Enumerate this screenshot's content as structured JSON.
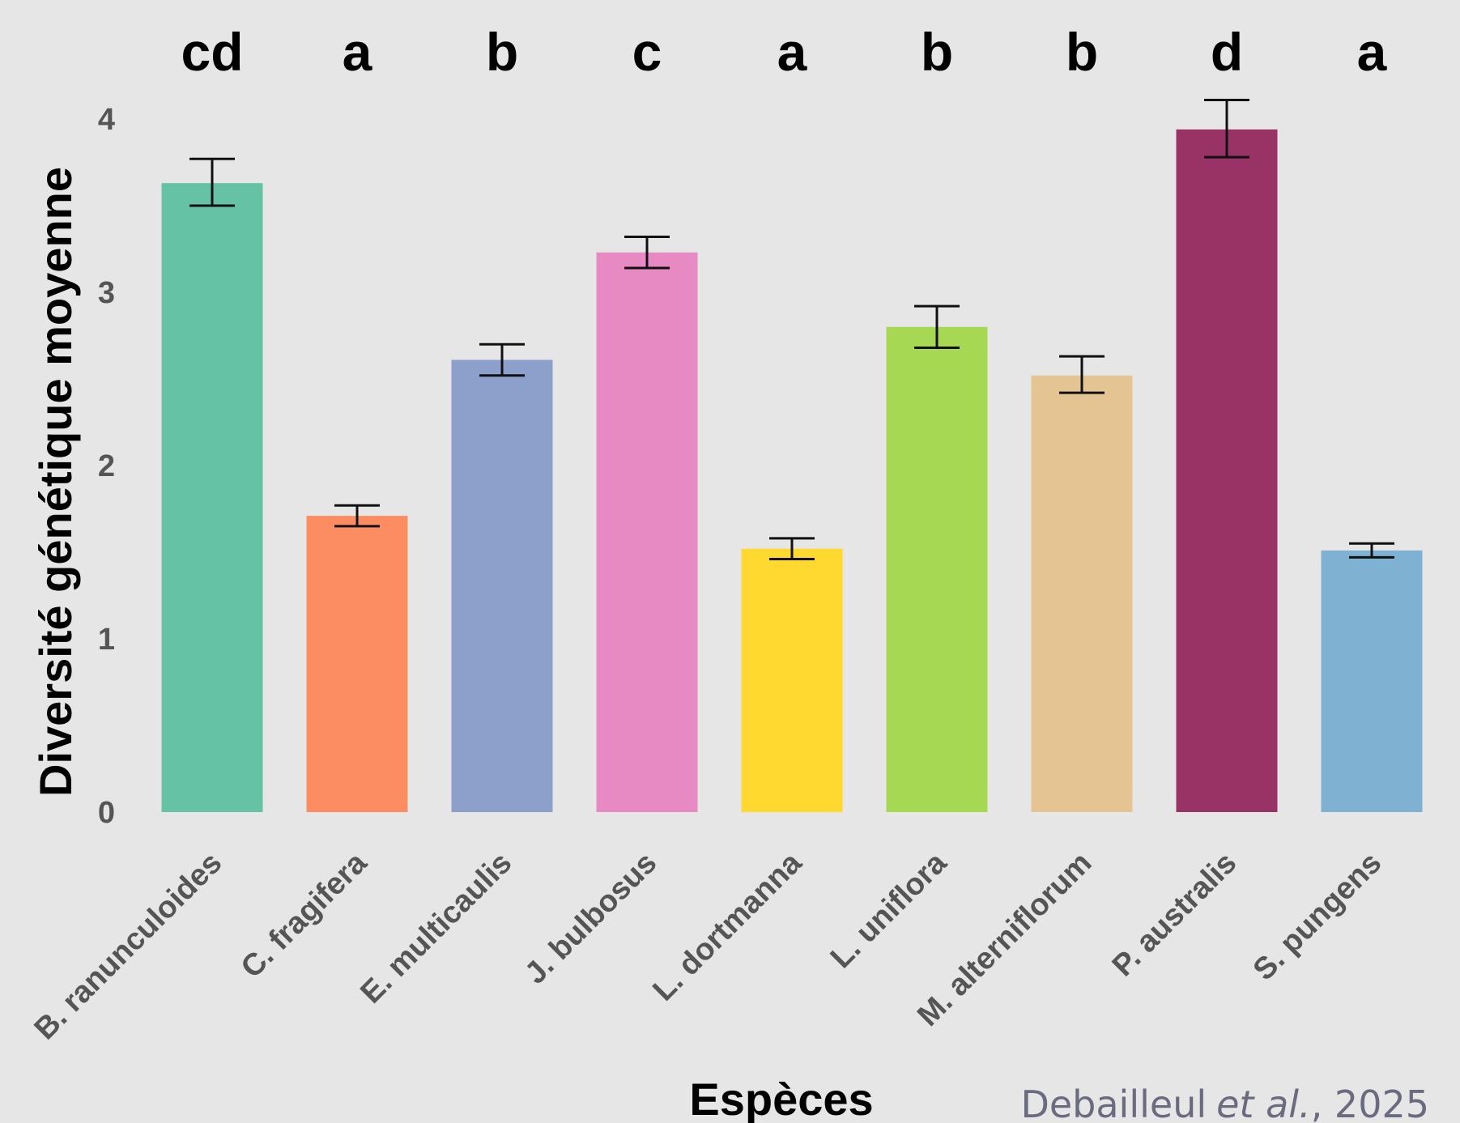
{
  "chart_data": {
    "type": "bar",
    "categories": [
      "B. ranunculoides",
      "C. fragifera",
      "E. multicaulis",
      "J. bulbosus",
      "L. dortmanna",
      "L. uniflora",
      "M. alterniflorum",
      "P. australis",
      "S. pungens"
    ],
    "values": [
      3.63,
      1.71,
      2.61,
      3.23,
      1.52,
      2.8,
      2.52,
      3.94,
      1.51
    ],
    "error_low": [
      3.5,
      1.65,
      2.52,
      3.14,
      1.46,
      2.68,
      2.42,
      3.78,
      1.47
    ],
    "error_high": [
      3.77,
      1.77,
      2.7,
      3.32,
      1.58,
      2.92,
      2.63,
      4.11,
      1.55
    ],
    "significance": [
      "cd",
      "a",
      "b",
      "c",
      "a",
      "b",
      "b",
      "d",
      "a"
    ],
    "colors": [
      "#66c2a5",
      "#fc8d62",
      "#8da0cb",
      "#e78ac3",
      "#ffd92f",
      "#a6d854",
      "#e5c494",
      "#993366",
      "#7fb1d3"
    ],
    "xlabel": "Espèces",
    "ylabel": "Diversité génétique moyenne",
    "yticks": [
      0,
      1,
      2,
      3,
      4
    ],
    "ylim": [
      0,
      4.15
    ],
    "grid": false,
    "background": "#e6e6e6"
  },
  "credit": {
    "authors": "Debailleul",
    "etal": "et al.",
    "year": ", 2025"
  }
}
